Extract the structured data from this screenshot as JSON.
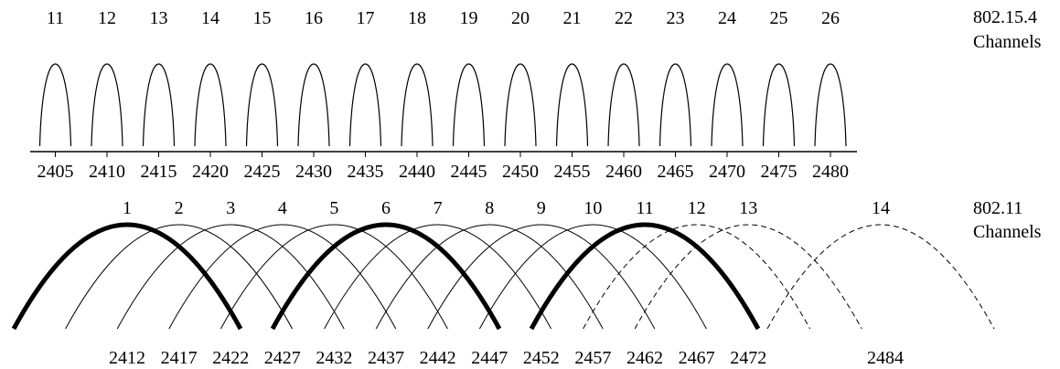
{
  "zigbee": {
    "label_line1": "802.15.4",
    "label_line2": "Channels",
    "channels": [
      {
        "number": "11",
        "freq": "2405"
      },
      {
        "number": "12",
        "freq": "2410"
      },
      {
        "number": "13",
        "freq": "2415"
      },
      {
        "number": "14",
        "freq": "2420"
      },
      {
        "number": "15",
        "freq": "2425"
      },
      {
        "number": "16",
        "freq": "2430"
      },
      {
        "number": "17",
        "freq": "2435"
      },
      {
        "number": "18",
        "freq": "2440"
      },
      {
        "number": "19",
        "freq": "2445"
      },
      {
        "number": "20",
        "freq": "2450"
      },
      {
        "number": "21",
        "freq": "2455"
      },
      {
        "number": "22",
        "freq": "2460"
      },
      {
        "number": "23",
        "freq": "2465"
      },
      {
        "number": "24",
        "freq": "2470"
      },
      {
        "number": "25",
        "freq": "2475"
      },
      {
        "number": "26",
        "freq": "2480"
      }
    ]
  },
  "wifi": {
    "label_line1": "802.11",
    "label_line2": "Channels",
    "channels": [
      {
        "number": "1",
        "style": "bold"
      },
      {
        "number": "2",
        "style": "thin"
      },
      {
        "number": "3",
        "style": "thin"
      },
      {
        "number": "4",
        "style": "thin"
      },
      {
        "number": "5",
        "style": "thin"
      },
      {
        "number": "6",
        "style": "bold"
      },
      {
        "number": "7",
        "style": "thin"
      },
      {
        "number": "8",
        "style": "thin"
      },
      {
        "number": "9",
        "style": "thin"
      },
      {
        "number": "10",
        "style": "thin"
      },
      {
        "number": "11",
        "style": "bold"
      },
      {
        "number": "12",
        "style": "dashed"
      },
      {
        "number": "13",
        "style": "dashed"
      },
      {
        "number": "14",
        "style": "dashed"
      }
    ],
    "freqs": [
      "2412",
      "2417",
      "2422",
      "2427",
      "2432",
      "2437",
      "2442",
      "2447",
      "2452",
      "2457",
      "2462",
      "2467",
      "2472",
      "2484"
    ]
  }
}
